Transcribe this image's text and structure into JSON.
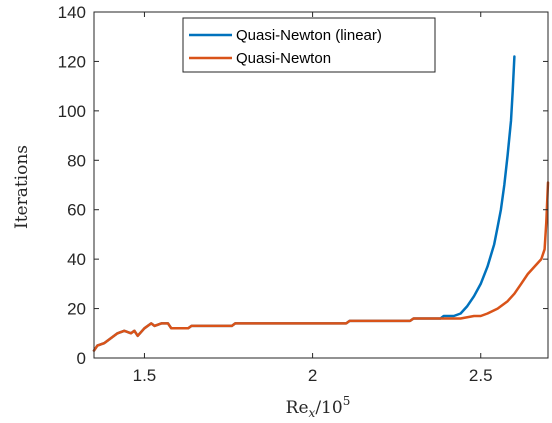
{
  "chart_data": {
    "type": "line",
    "title": "",
    "xlabel_main": "Re",
    "xlabel_sub": "x",
    "xlabel_rest": "/10",
    "xlabel_sup": "5",
    "ylabel": "Iterations",
    "xlim": [
      1.35,
      2.7
    ],
    "ylim": [
      0,
      140
    ],
    "xticks": [
      1.5,
      2,
      2.5
    ],
    "xtick_labels": [
      "1.5",
      "2",
      "2.5"
    ],
    "yticks": [
      0,
      20,
      40,
      60,
      80,
      100,
      120,
      140
    ],
    "ytick_labels": [
      "0",
      "20",
      "40",
      "60",
      "80",
      "100",
      "120",
      "140"
    ],
    "grid": false,
    "legend_position": "top-center",
    "series": [
      {
        "name": "Quasi-Newton (linear)",
        "color": "#0072BD",
        "x": [
          1.35,
          1.36,
          1.38,
          1.4,
          1.42,
          1.44,
          1.46,
          1.47,
          1.48,
          1.5,
          1.52,
          1.53,
          1.55,
          1.57,
          1.58,
          1.63,
          1.64,
          1.7,
          1.76,
          1.77,
          1.9,
          2.0,
          2.1,
          2.11,
          2.2,
          2.29,
          2.3,
          2.38,
          2.39,
          2.42,
          2.44,
          2.46,
          2.48,
          2.5,
          2.52,
          2.54,
          2.55,
          2.56,
          2.57,
          2.58,
          2.59,
          2.595,
          2.6
        ],
        "y": [
          3,
          5,
          6,
          8,
          10,
          11,
          10,
          11,
          9,
          12,
          14,
          13,
          14,
          14,
          12,
          12,
          13,
          13,
          13,
          14,
          14,
          14,
          14,
          15,
          15,
          15,
          16,
          16,
          17,
          17,
          18,
          21,
          25,
          30,
          37,
          46,
          53,
          60,
          70,
          82,
          96,
          108,
          122
        ]
      },
      {
        "name": "Quasi-Newton",
        "color": "#D95319",
        "x": [
          1.35,
          1.36,
          1.38,
          1.4,
          1.42,
          1.44,
          1.46,
          1.47,
          1.48,
          1.5,
          1.52,
          1.53,
          1.55,
          1.57,
          1.58,
          1.63,
          1.64,
          1.7,
          1.76,
          1.77,
          1.9,
          2.0,
          2.1,
          2.11,
          2.2,
          2.29,
          2.3,
          2.38,
          2.39,
          2.44,
          2.48,
          2.5,
          2.52,
          2.55,
          2.58,
          2.6,
          2.62,
          2.64,
          2.66,
          2.68,
          2.69,
          2.695,
          2.7
        ],
        "y": [
          3,
          5,
          6,
          8,
          10,
          11,
          10,
          11,
          9,
          12,
          14,
          13,
          14,
          14,
          12,
          12,
          13,
          13,
          13,
          14,
          14,
          14,
          14,
          15,
          15,
          15,
          16,
          16,
          16,
          16,
          17,
          17,
          18,
          20,
          23,
          26,
          30,
          34,
          37,
          40,
          44,
          55,
          71
        ]
      }
    ]
  }
}
